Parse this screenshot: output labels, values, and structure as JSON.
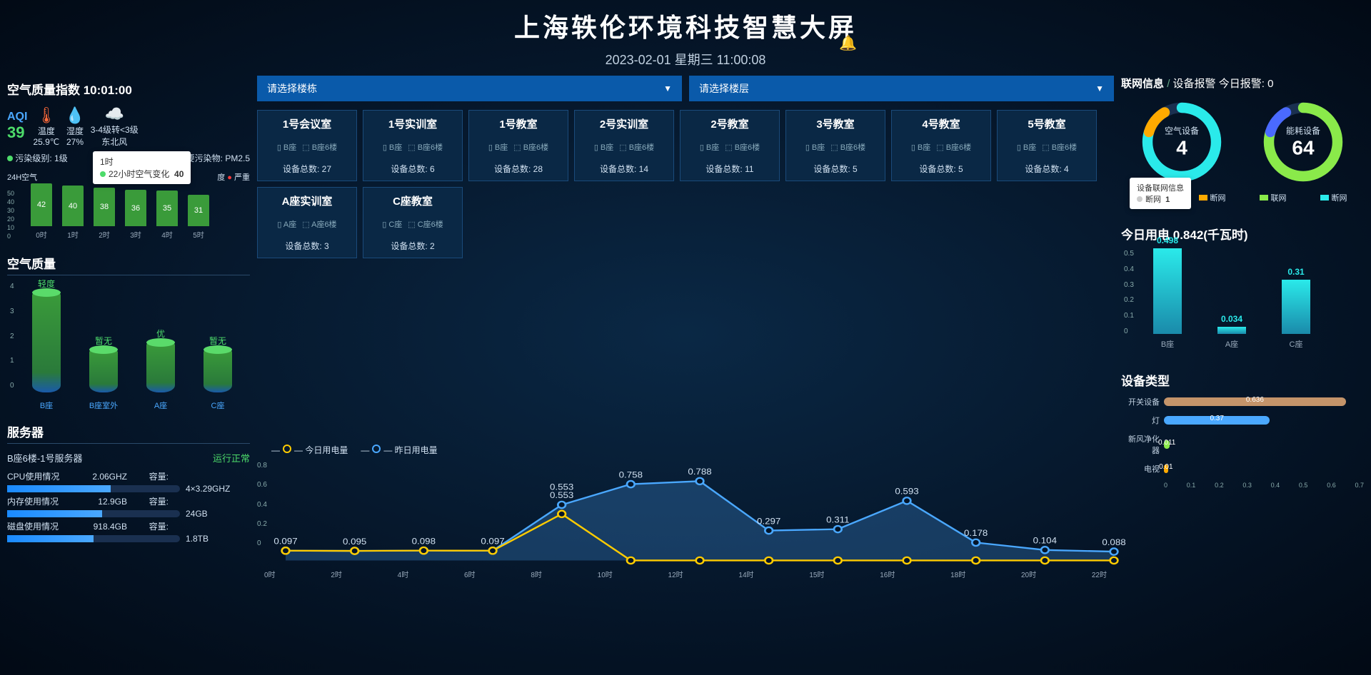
{
  "header": {
    "title": "上海轶伦环境科技智慧大屏",
    "datetime": "2023-02-01 星期三 11:00:08"
  },
  "aqi": {
    "section_title": "空气质量指数 10:01:00",
    "label": "AQI",
    "value": "39",
    "temp_label": "温度",
    "temp_value": "25.9℃",
    "humidity_label": "湿度",
    "humidity_value": "27%",
    "wind_line1": "3-4级转<3级",
    "wind_line2": "东北风",
    "pollution_level_label": "污染级别:",
    "pollution_level_value": "1级",
    "primary_pollutant_label": "首要污染物:",
    "primary_pollutant_value": "PM2.5",
    "chart_title": "24H空气",
    "severity_low": "度",
    "severity_high": "严重",
    "tooltip_time": "1时",
    "tooltip_series": "22小时空气变化",
    "tooltip_value": "40",
    "tooltip_dot_color": "#4ddb6a",
    "y_ticks": [
      "50",
      "40",
      "30",
      "20",
      "10",
      "0"
    ],
    "bars": [
      {
        "x": "0时",
        "v": 42,
        "h": 60
      },
      {
        "x": "1时",
        "v": 40,
        "h": 57
      },
      {
        "x": "2时",
        "v": 38,
        "h": 54
      },
      {
        "x": "3时",
        "v": 36,
        "h": 51
      },
      {
        "x": "4时",
        "v": 35,
        "h": 50
      },
      {
        "x": "5时",
        "v": 31,
        "h": 44
      }
    ],
    "bar_color": "#3a9b3a"
  },
  "air_quality": {
    "title": "空气质量",
    "y_ticks": [
      "4",
      "3",
      "2",
      "1",
      "0"
    ],
    "cylinders": [
      {
        "label": "轻度",
        "x": "B座",
        "h": 140
      },
      {
        "label": "暂无",
        "x": "B座室外",
        "h": 60
      },
      {
        "label": "优",
        "x": "A座",
        "h": 70
      },
      {
        "label": "暂无",
        "x": "C座",
        "h": 60
      }
    ]
  },
  "server": {
    "title": "服务器",
    "name": "B座6楼-1号服务器",
    "status": "运行正常",
    "cpu_label": "CPU使用情况",
    "cpu_freq": "2.06GHZ",
    "cpu_cap_label": "容量:",
    "cpu_cap": "4×3.29GHZ",
    "cpu_pct": 60,
    "mem_label": "内存使用情况",
    "mem_used": "12.9GB",
    "mem_cap_label": "容量:",
    "mem_cap": "24GB",
    "mem_pct": 55,
    "disk_label": "磁盘使用情况",
    "disk_used": "918.4GB",
    "disk_cap_label": "容量:",
    "disk_cap": "1.8TB",
    "disk_pct": 50
  },
  "selects": {
    "building_placeholder": "请选择楼栋",
    "floor_placeholder": "请选择楼层"
  },
  "rooms": [
    {
      "name": "1号会议室",
      "loc1": "B座",
      "loc2": "B座6楼",
      "count_label": "设备总数:",
      "count": 27
    },
    {
      "name": "1号实训室",
      "loc1": "B座",
      "loc2": "B座6楼",
      "count_label": "设备总数:",
      "count": 6
    },
    {
      "name": "1号教室",
      "loc1": "B座",
      "loc2": "B座6楼",
      "count_label": "设备总数:",
      "count": 28
    },
    {
      "name": "2号实训室",
      "loc1": "B座",
      "loc2": "B座6楼",
      "count_label": "设备总数:",
      "count": 14
    },
    {
      "name": "2号教室",
      "loc1": "B座",
      "loc2": "B座6楼",
      "count_label": "设备总数:",
      "count": 11
    },
    {
      "name": "3号教室",
      "loc1": "B座",
      "loc2": "B座6楼",
      "count_label": "设备总数:",
      "count": 5
    },
    {
      "name": "4号教室",
      "loc1": "B座",
      "loc2": "B座6楼",
      "count_label": "设备总数:",
      "count": 5
    },
    {
      "name": "5号教室",
      "loc1": "B座",
      "loc2": "B座6楼",
      "count_label": "设备总数:",
      "count": 4
    },
    {
      "name": "A座实训室",
      "loc1": "A座",
      "loc2": "A座6楼",
      "count_label": "设备总数:",
      "count": 3
    },
    {
      "name": "C座教室",
      "loc1": "C座",
      "loc2": "C座6楼",
      "count_label": "设备总数:",
      "count": 2
    }
  ],
  "line_chart": {
    "legend": [
      {
        "name": "今日用电量",
        "color": "#ffcc00"
      },
      {
        "name": "昨日用电量",
        "color": "#4aa8ff"
      }
    ],
    "y_ticks": [
      "0.8",
      "0.6",
      "0.4",
      "0.2",
      "0"
    ],
    "x_labels": [
      "0时",
      "2时",
      "4时",
      "6时",
      "8时",
      "10时",
      "12时",
      "14时",
      "15时",
      "16时",
      "18时",
      "20时",
      "22时"
    ],
    "series_today": {
      "points": [
        {
          "x": 0,
          "v": 0.097
        },
        {
          "x": 1,
          "v": 0.095
        },
        {
          "x": 2,
          "v": 0.098
        },
        {
          "x": 3,
          "v": 0.097
        },
        {
          "x": 4,
          "v": 0.462
        },
        {
          "x": 5,
          "v": 0
        },
        {
          "x": 6,
          "v": 0
        },
        {
          "x": 7,
          "v": 0
        },
        {
          "x": 8,
          "v": 0
        },
        {
          "x": 9,
          "v": 0
        },
        {
          "x": 10,
          "v": 0
        },
        {
          "x": 11,
          "v": 0
        },
        {
          "x": 12,
          "v": 0
        }
      ],
      "color": "#ffcc00",
      "extra_label": "0.553"
    },
    "series_yesterday": {
      "points": [
        {
          "x": 0,
          "v": 0.097
        },
        {
          "x": 1,
          "v": 0.095
        },
        {
          "x": 2,
          "v": 0.098
        },
        {
          "x": 3,
          "v": 0.097
        },
        {
          "x": 4,
          "v": 0.553
        },
        {
          "x": 5,
          "v": 0.758
        },
        {
          "x": 6,
          "v": 0.788
        },
        {
          "x": 7,
          "v": 0.297
        },
        {
          "x": 8,
          "v": 0.311
        },
        {
          "x": 9,
          "v": 0.593
        },
        {
          "x": 10,
          "v": 0.178
        },
        {
          "x": 11,
          "v": 0.104
        },
        {
          "x": 12,
          "v": 0.088
        }
      ],
      "color": "#4aa8ff"
    }
  },
  "network": {
    "title": "联网信息",
    "alarm_label": "设备报警",
    "today_alarm_label": "今日报警:",
    "today_alarm_value": "0",
    "gauges": [
      {
        "title": "空气设备",
        "value": 4,
        "ring_color": "#2aeaea",
        "accent_color": "#ffaa00"
      },
      {
        "title": "能耗设备",
        "value": 64,
        "ring_color": "#8aea4a",
        "accent_color": "#4a6aff"
      }
    ],
    "tooltip_title": "设备联网信息",
    "tooltip_label": "断网",
    "tooltip_value": "1",
    "legend_online": "联网",
    "legend_offline": "断网",
    "colors": {
      "online_air": "#2aeaea",
      "offline_air": "#ffaa00",
      "online_energy": "#8aea4a",
      "offline_energy": "#2aeaea"
    }
  },
  "power": {
    "title_prefix": "今日用电",
    "title_value": "0.842(千瓦时)",
    "y_ticks": [
      "0.5",
      "0.4",
      "0.3",
      "0.2",
      "0.1",
      "0"
    ],
    "bars": [
      {
        "label": "B座",
        "v": "0.498",
        "h": 120
      },
      {
        "label": "A座",
        "v": "0.034",
        "h": 10
      },
      {
        "label": "C座",
        "v": "0.31",
        "h": 76
      }
    ],
    "bar_color": "#2aeaea"
  },
  "dev_types": {
    "title": "设备类型",
    "rows": [
      {
        "label": "开关设备",
        "v": "0.636",
        "w": 91,
        "color": "#c4946a"
      },
      {
        "label": "灯",
        "v": "0.37",
        "w": 53,
        "color": "#4aa8ff"
      },
      {
        "label": "新风净化器",
        "v": "0.011",
        "w": 3,
        "color": "#8aea4a"
      },
      {
        "label": "电视",
        "v": "0.01",
        "w": 2,
        "color": "#ffaa00"
      }
    ],
    "x_ticks": [
      "0",
      "0.1",
      "0.2",
      "0.3",
      "0.4",
      "0.5",
      "0.6",
      "0.7"
    ]
  }
}
